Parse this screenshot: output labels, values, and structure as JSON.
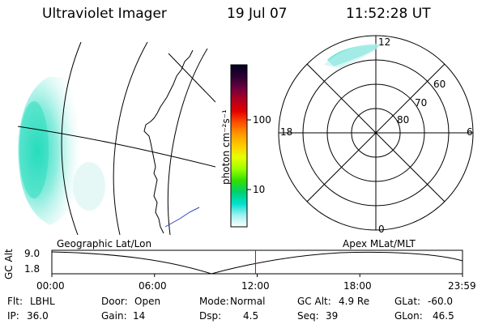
{
  "header": {
    "title": "Ultraviolet Imager",
    "date": "19 Jul 07",
    "time": "11:52:28 UT"
  },
  "colorbar": {
    "unit_label": "photon cm⁻²s⁻¹",
    "ticks": [
      "100",
      "10"
    ],
    "stops": [
      "#000020",
      "#2a0030",
      "#6a0040",
      "#b00020",
      "#e00000",
      "#ff5000",
      "#ff9a00",
      "#ffcc00",
      "#e8ff00",
      "#9cff00",
      "#30e000",
      "#00d070",
      "#00e0d0",
      "#a0f0f0",
      "#ffffff"
    ]
  },
  "polar": {
    "mlt_labels": {
      "top": "12",
      "left": "18",
      "right": "6",
      "bottom": "0"
    },
    "lat_labels": [
      "60",
      "70",
      "80"
    ]
  },
  "timeline": {
    "left_title": "Geographic Lat/Lon",
    "right_title": "Apex MLat/MLT",
    "axis_label": "GC Alt",
    "y_max": "9.0",
    "y_min": "1.8",
    "x_ticks": [
      "00:00",
      "06:00",
      "12:00",
      "18:00",
      "23:59"
    ],
    "current_time_fraction": 0.496
  },
  "info": {
    "row1": [
      {
        "key": "Flt:",
        "value": "LBHL"
      },
      {
        "key": "Door:",
        "value": "Open"
      },
      {
        "key": "Mode:",
        "value": "Normal"
      },
      {
        "key": "GC Alt:",
        "value": "4.9 Re"
      },
      {
        "key": "GLat:",
        "value": "-60.0"
      }
    ],
    "row2": [
      {
        "key": "IP:",
        "value": "36.0"
      },
      {
        "key": "Gain:",
        "value": "14"
      },
      {
        "key": "Dsp:",
        "value": "4.5"
      },
      {
        "key": "Seq:",
        "value": "39"
      },
      {
        "key": "GLon:",
        "value": "46.5"
      }
    ]
  }
}
